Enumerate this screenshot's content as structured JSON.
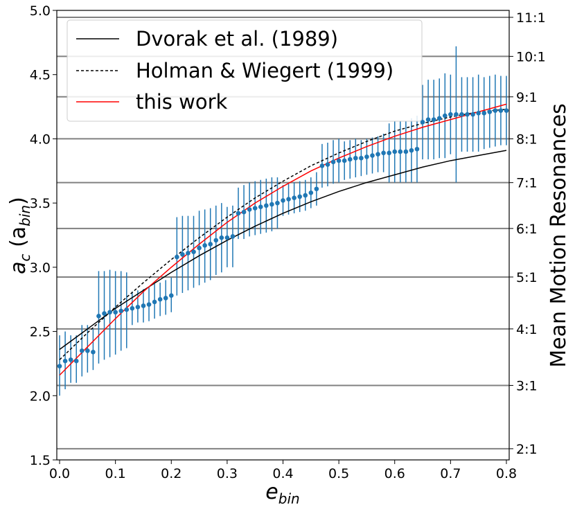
{
  "chart_data": {
    "type": "scatter",
    "xlabel_main": "e",
    "xlabel_sub": "bin",
    "ylabel_main": "a",
    "ylabel_sub1": "c",
    "ylabel_paren_open": " (a",
    "ylabel_sub2": "bin",
    "ylabel_paren_close": ")",
    "y2label": "Mean Motion Resonances",
    "xlim": [
      -0.005,
      0.805
    ],
    "ylim": [
      1.5,
      5.0
    ],
    "xticks": [
      "0.0",
      "0.1",
      "0.2",
      "0.3",
      "0.4",
      "0.5",
      "0.6",
      "0.7",
      "0.8"
    ],
    "yticks": [
      "1.5",
      "2.0",
      "2.5",
      "3.0",
      "3.5",
      "4.0",
      "4.5",
      "5.0"
    ],
    "grid": false,
    "legend_position": "upper-left",
    "resonances": [
      {
        "label": "2:1",
        "y": 1.587
      },
      {
        "label": "3:1",
        "y": 2.08
      },
      {
        "label": "4:1",
        "y": 2.52
      },
      {
        "label": "5:1",
        "y": 2.924
      },
      {
        "label": "6:1",
        "y": 3.302
      },
      {
        "label": "7:1",
        "y": 3.659
      },
      {
        "label": "8:1",
        "y": 4.0
      },
      {
        "label": "9:1",
        "y": 4.327
      },
      {
        "label": "10:1",
        "y": 4.642
      },
      {
        "label": "11:1",
        "y": 4.946
      }
    ],
    "series": [
      {
        "name": "Dvorak et al. (1989)",
        "style": "solid",
        "color": "#000000",
        "x": [
          0.0,
          0.05,
          0.1,
          0.15,
          0.2,
          0.25,
          0.3,
          0.35,
          0.4,
          0.45,
          0.5,
          0.55,
          0.6,
          0.65,
          0.7,
          0.75,
          0.8
        ],
        "y": [
          2.36,
          2.52,
          2.68,
          2.82,
          2.96,
          3.09,
          3.21,
          3.32,
          3.42,
          3.51,
          3.59,
          3.66,
          3.72,
          3.78,
          3.83,
          3.87,
          3.91
        ]
      },
      {
        "name": "Holman & Wiegert (1999)",
        "style": "dashed",
        "color": "#000000",
        "x": [
          0.0,
          0.05,
          0.1,
          0.15,
          0.2,
          0.25,
          0.3,
          0.35,
          0.4,
          0.45,
          0.5,
          0.55,
          0.6,
          0.65,
          0.7,
          0.75,
          0.8
        ],
        "y": [
          2.28,
          2.49,
          2.69,
          2.88,
          3.06,
          3.23,
          3.39,
          3.54,
          3.67,
          3.79,
          3.89,
          3.98,
          4.06,
          4.12,
          4.17,
          4.21,
          4.23
        ]
      },
      {
        "name": "this work",
        "style": "solid",
        "color": "#ff0000",
        "x": [
          0.0,
          0.05,
          0.1,
          0.15,
          0.2,
          0.25,
          0.3,
          0.35,
          0.4,
          0.45,
          0.5,
          0.55,
          0.6,
          0.65,
          0.7,
          0.75,
          0.8
        ],
        "y": [
          2.16,
          2.38,
          2.6,
          2.81,
          3.0,
          3.18,
          3.35,
          3.5,
          3.63,
          3.75,
          3.85,
          3.94,
          4.02,
          4.09,
          4.15,
          4.21,
          4.27
        ]
      },
      {
        "name": "data",
        "style": "points",
        "color": "#1f77b4",
        "points": [
          [
            0.0,
            2.23,
            2.0,
            2.47
          ],
          [
            0.01,
            2.27,
            2.05,
            2.5
          ],
          [
            0.02,
            2.28,
            2.1,
            2.47
          ],
          [
            0.03,
            2.27,
            2.1,
            2.47
          ],
          [
            0.04,
            2.35,
            2.15,
            2.55
          ],
          [
            0.05,
            2.35,
            2.18,
            2.55
          ],
          [
            0.06,
            2.34,
            2.2,
            2.52
          ],
          [
            0.07,
            2.62,
            2.25,
            2.97
          ],
          [
            0.08,
            2.64,
            2.28,
            2.97
          ],
          [
            0.09,
            2.65,
            2.3,
            2.98
          ],
          [
            0.1,
            2.65,
            2.32,
            2.97
          ],
          [
            0.11,
            2.66,
            2.35,
            2.97
          ],
          [
            0.12,
            2.67,
            2.37,
            2.96
          ],
          [
            0.13,
            2.68,
            2.55,
            2.81
          ],
          [
            0.14,
            2.69,
            2.57,
            2.82
          ],
          [
            0.15,
            2.7,
            2.57,
            2.83
          ],
          [
            0.16,
            2.71,
            2.58,
            2.85
          ],
          [
            0.17,
            2.73,
            2.6,
            2.87
          ],
          [
            0.18,
            2.75,
            2.62,
            2.88
          ],
          [
            0.19,
            2.76,
            2.63,
            2.9
          ],
          [
            0.2,
            2.78,
            2.65,
            2.92
          ],
          [
            0.21,
            3.08,
            2.78,
            3.39
          ],
          [
            0.22,
            3.1,
            2.8,
            3.4
          ],
          [
            0.23,
            3.11,
            2.82,
            3.4
          ],
          [
            0.24,
            3.12,
            2.84,
            3.4
          ],
          [
            0.25,
            3.15,
            2.86,
            3.44
          ],
          [
            0.26,
            3.17,
            2.88,
            3.45
          ],
          [
            0.27,
            3.18,
            2.9,
            3.46
          ],
          [
            0.28,
            3.21,
            2.94,
            3.48
          ],
          [
            0.29,
            3.23,
            2.96,
            3.5
          ],
          [
            0.3,
            3.23,
            3.0,
            3.47
          ],
          [
            0.31,
            3.24,
            3.0,
            3.48
          ],
          [
            0.32,
            3.42,
            3.22,
            3.62
          ],
          [
            0.33,
            3.43,
            3.22,
            3.64
          ],
          [
            0.34,
            3.45,
            3.24,
            3.66
          ],
          [
            0.35,
            3.46,
            3.25,
            3.67
          ],
          [
            0.36,
            3.47,
            3.26,
            3.68
          ],
          [
            0.37,
            3.48,
            3.27,
            3.69
          ],
          [
            0.38,
            3.49,
            3.28,
            3.7
          ],
          [
            0.39,
            3.5,
            3.3,
            3.7
          ],
          [
            0.4,
            3.52,
            3.4,
            3.64
          ],
          [
            0.41,
            3.53,
            3.41,
            3.65
          ],
          [
            0.42,
            3.54,
            3.42,
            3.66
          ],
          [
            0.43,
            3.55,
            3.43,
            3.67
          ],
          [
            0.44,
            3.56,
            3.44,
            3.68
          ],
          [
            0.45,
            3.58,
            3.46,
            3.7
          ],
          [
            0.46,
            3.61,
            3.48,
            3.74
          ],
          [
            0.47,
            3.79,
            3.62,
            3.96
          ],
          [
            0.48,
            3.8,
            3.63,
            3.97
          ],
          [
            0.49,
            3.82,
            3.65,
            3.99
          ],
          [
            0.5,
            3.83,
            3.66,
            4.0
          ],
          [
            0.51,
            3.83,
            3.68,
            3.98
          ],
          [
            0.52,
            3.84,
            3.69,
            3.99
          ],
          [
            0.53,
            3.85,
            3.7,
            4.0
          ],
          [
            0.54,
            3.85,
            3.71,
            3.99
          ],
          [
            0.55,
            3.86,
            3.72,
            4.0
          ],
          [
            0.56,
            3.87,
            3.73,
            4.01
          ],
          [
            0.57,
            3.88,
            3.74,
            4.02
          ],
          [
            0.58,
            3.89,
            3.74,
            4.04
          ],
          [
            0.59,
            3.89,
            3.66,
            4.12
          ],
          [
            0.6,
            3.9,
            3.66,
            4.14
          ],
          [
            0.61,
            3.9,
            3.66,
            4.14
          ],
          [
            0.62,
            3.9,
            3.66,
            4.14
          ],
          [
            0.63,
            3.91,
            3.66,
            4.16
          ],
          [
            0.64,
            3.92,
            3.66,
            4.18
          ],
          [
            0.65,
            4.13,
            3.84,
            4.42
          ],
          [
            0.66,
            4.15,
            3.84,
            4.46
          ],
          [
            0.67,
            4.15,
            3.84,
            4.46
          ],
          [
            0.68,
            4.16,
            3.85,
            4.47
          ],
          [
            0.69,
            4.18,
            3.85,
            4.51
          ],
          [
            0.7,
            4.19,
            3.88,
            4.5
          ],
          [
            0.71,
            4.19,
            3.66,
            4.72
          ],
          [
            0.72,
            4.19,
            3.9,
            4.48
          ],
          [
            0.73,
            4.19,
            3.9,
            4.48
          ],
          [
            0.74,
            4.19,
            3.9,
            4.48
          ],
          [
            0.75,
            4.2,
            3.9,
            4.5
          ],
          [
            0.76,
            4.2,
            3.92,
            4.48
          ],
          [
            0.77,
            4.21,
            3.93,
            4.49
          ],
          [
            0.78,
            4.22,
            3.94,
            4.5
          ],
          [
            0.79,
            4.22,
            3.95,
            4.49
          ],
          [
            0.8,
            4.22,
            3.95,
            4.49
          ]
        ]
      }
    ]
  }
}
